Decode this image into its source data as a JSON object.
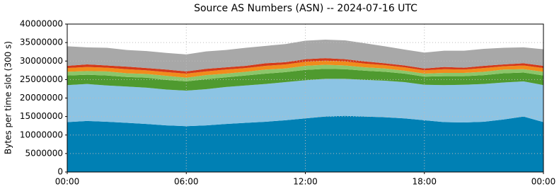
{
  "chart_data": {
    "type": "stacked-area",
    "title": "Source AS Numbers (ASN) -- 2024-07-16 UTC",
    "ylabel": "Bytes per time slot (300 s)",
    "x": [
      0,
      1,
      2,
      3,
      4,
      5,
      6,
      7,
      8,
      9,
      10,
      11,
      12,
      13,
      14,
      15,
      16,
      17,
      18,
      19,
      20,
      21,
      22,
      23,
      24
    ],
    "xlim": [
      0,
      24
    ],
    "xticks": [
      {
        "value": 0,
        "label": "00:00"
      },
      {
        "value": 6,
        "label": "06:00"
      },
      {
        "value": 12,
        "label": "12:00"
      },
      {
        "value": 18,
        "label": "18:00"
      },
      {
        "value": 24,
        "label": "00:00"
      }
    ],
    "ylim": [
      0,
      40000000
    ],
    "yticks": [
      0,
      5000000,
      10000000,
      15000000,
      20000000,
      25000000,
      30000000,
      35000000,
      40000000
    ],
    "grid": true,
    "series": [
      {
        "color": "#0080b4",
        "values": [
          13500000,
          13800000,
          13600000,
          13300000,
          13000000,
          12600000,
          12400000,
          12600000,
          13000000,
          13300000,
          13600000,
          14000000,
          14500000,
          15000000,
          15200000,
          15000000,
          14800000,
          14500000,
          14000000,
          13500000,
          13400000,
          13600000,
          14200000,
          15000000,
          13500000
        ]
      },
      {
        "color": "#8cc4e4",
        "values": [
          10000000,
          10000000,
          9800000,
          9800000,
          9800000,
          9700000,
          9600000,
          9800000,
          10000000,
          10100000,
          10200000,
          10300000,
          10300000,
          10200000,
          10000000,
          9900000,
          9900000,
          9800000,
          9600000,
          10000000,
          10200000,
          10200000,
          10000000,
          9500000,
          10000000
        ]
      },
      {
        "color": "#4f9a2f",
        "values": [
          2600000,
          2500000,
          2700000,
          2600000,
          2700000,
          2600000,
          2500000,
          2700000,
          2600000,
          2700000,
          2800000,
          2700000,
          2800000,
          2700000,
          2600000,
          2500000,
          2400000,
          2300000,
          2200000,
          2400000,
          2300000,
          2400000,
          2500000,
          2400000,
          2600000
        ]
      },
      {
        "color": "#8cc66a",
        "values": [
          1000000,
          1000000,
          1100000,
          1000000,
          1000000,
          1100000,
          1000000,
          1100000,
          1000000,
          1000000,
          1100000,
          1000000,
          1100000,
          1100000,
          1000000,
          900000,
          900000,
          800000,
          800000,
          900000,
          900000,
          900000,
          1000000,
          900000,
          1000000
        ]
      },
      {
        "color": "#f08c1c",
        "values": [
          1000000,
          1100000,
          1000000,
          1100000,
          1000000,
          1000000,
          1100000,
          1000000,
          1100000,
          1000000,
          1000000,
          1100000,
          1100000,
          1100000,
          1100000,
          1000000,
          900000,
          900000,
          900000,
          1000000,
          900000,
          1000000,
          900000,
          1000000,
          1000000
        ]
      },
      {
        "color": "#d43a1a",
        "values": [
          600000,
          700000,
          600000,
          700000,
          600000,
          700000,
          600000,
          700000,
          600000,
          600000,
          700000,
          600000,
          700000,
          700000,
          600000,
          600000,
          500000,
          500000,
          500000,
          600000,
          500000,
          600000,
          500000,
          600000,
          600000
        ]
      },
      {
        "color": "#a8a8a8",
        "values": [
          5300000,
          4600000,
          4800000,
          4500000,
          4600000,
          4500000,
          4600000,
          4700000,
          4700000,
          4900000,
          4700000,
          4900000,
          5000000,
          5000000,
          5100000,
          4900000,
          4600000,
          4300000,
          4300000,
          4400000,
          4600000,
          4600000,
          4500000,
          4300000,
          4500000
        ]
      }
    ]
  }
}
